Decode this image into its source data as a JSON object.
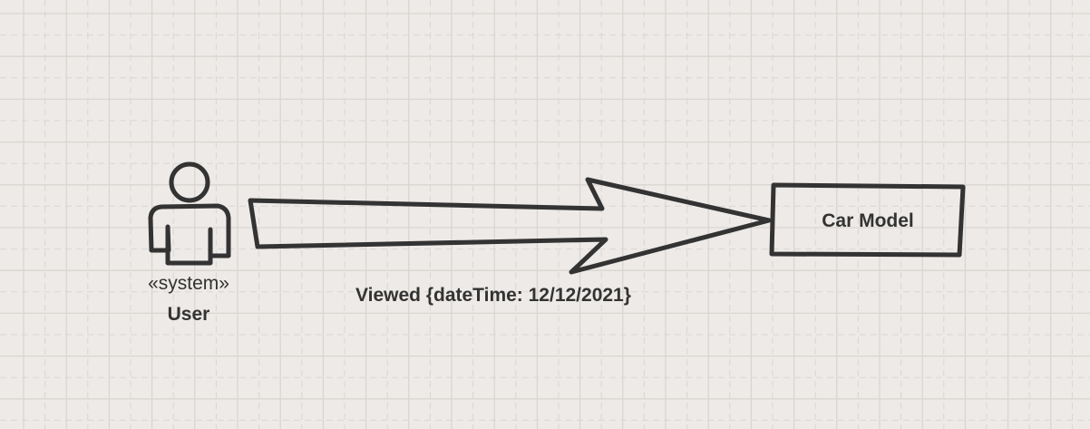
{
  "diagram": {
    "type": "uml-use-case",
    "actor": {
      "stereotype": "«system»",
      "name": "User",
      "icon": "actor-figure-icon"
    },
    "association": {
      "label": "Viewed {dateTime: 12/12/2021}",
      "direction": "actor-to-class",
      "arrow_style": "block-arrow"
    },
    "class_box": {
      "name": "Car Model"
    }
  },
  "colors": {
    "background": "#edeae7",
    "grid_major": "#d9d6d2",
    "grid_minor": "#dad7d3",
    "stroke": "#333333",
    "text": "#333333"
  }
}
